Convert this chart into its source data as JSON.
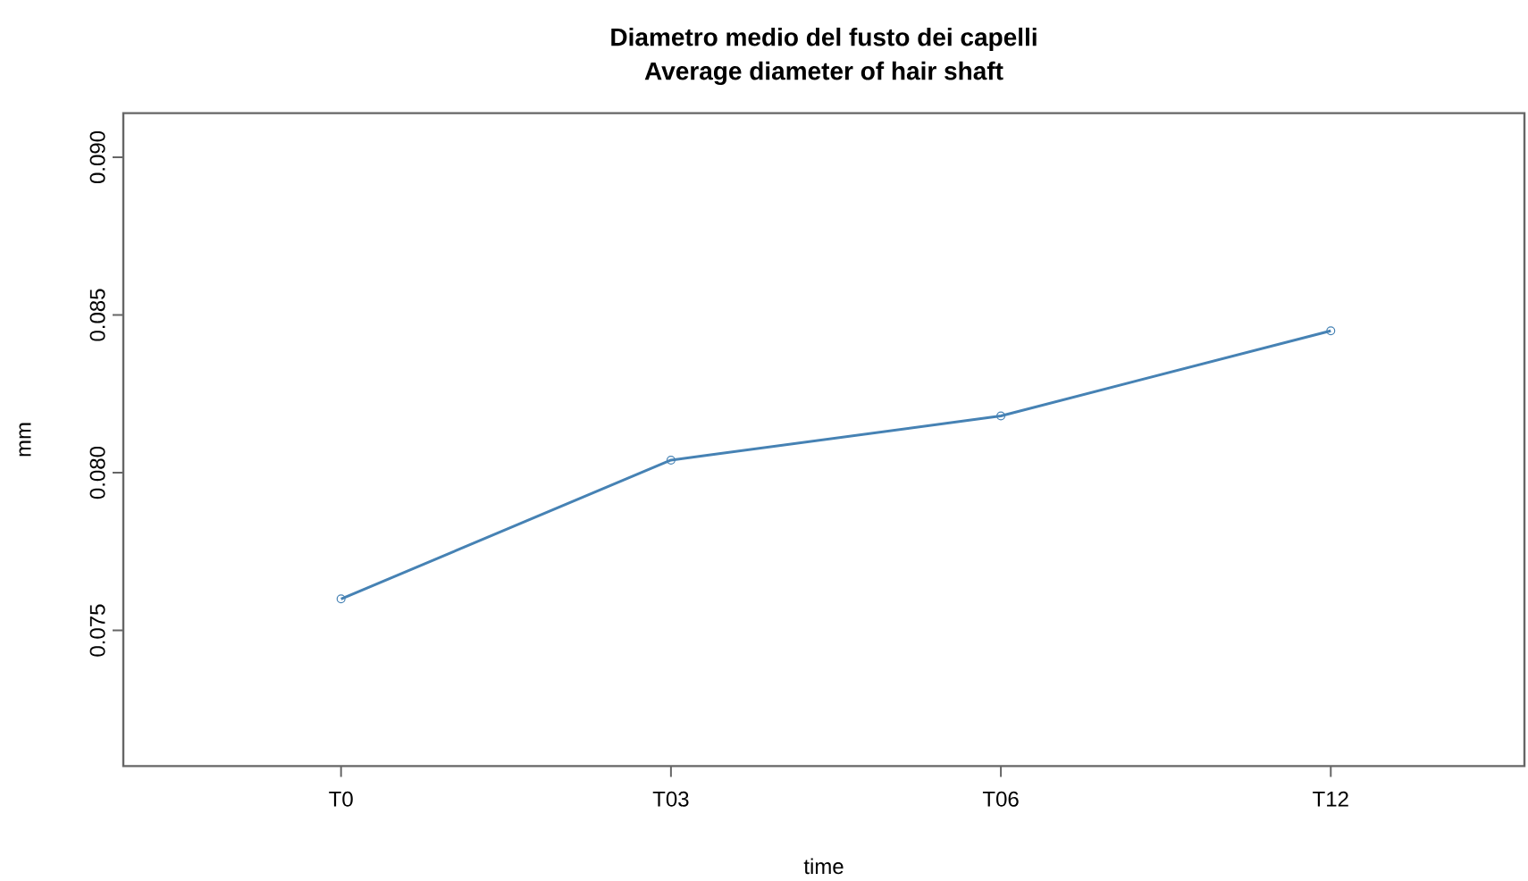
{
  "chart_data": {
    "type": "line",
    "title": "Diametro medio del fusto dei capelli",
    "subtitle": "Average diameter of hair shaft",
    "xlabel": "time",
    "ylabel": "mm",
    "categories": [
      "T0",
      "T03",
      "T06",
      "T12"
    ],
    "series": [
      {
        "color": "#4682b4",
        "values": [
          0.076,
          0.0804,
          0.0818,
          0.0845
        ]
      }
    ],
    "ylim": [
      0.0707,
      0.0914
    ],
    "yticks": [
      {
        "value": 0.075,
        "label": "0.075"
      },
      {
        "value": 0.08,
        "label": "0.080"
      },
      {
        "value": 0.085,
        "label": "0.085"
      },
      {
        "value": 0.09,
        "label": "0.090"
      }
    ],
    "marker": "circle",
    "line_style": "solid"
  }
}
